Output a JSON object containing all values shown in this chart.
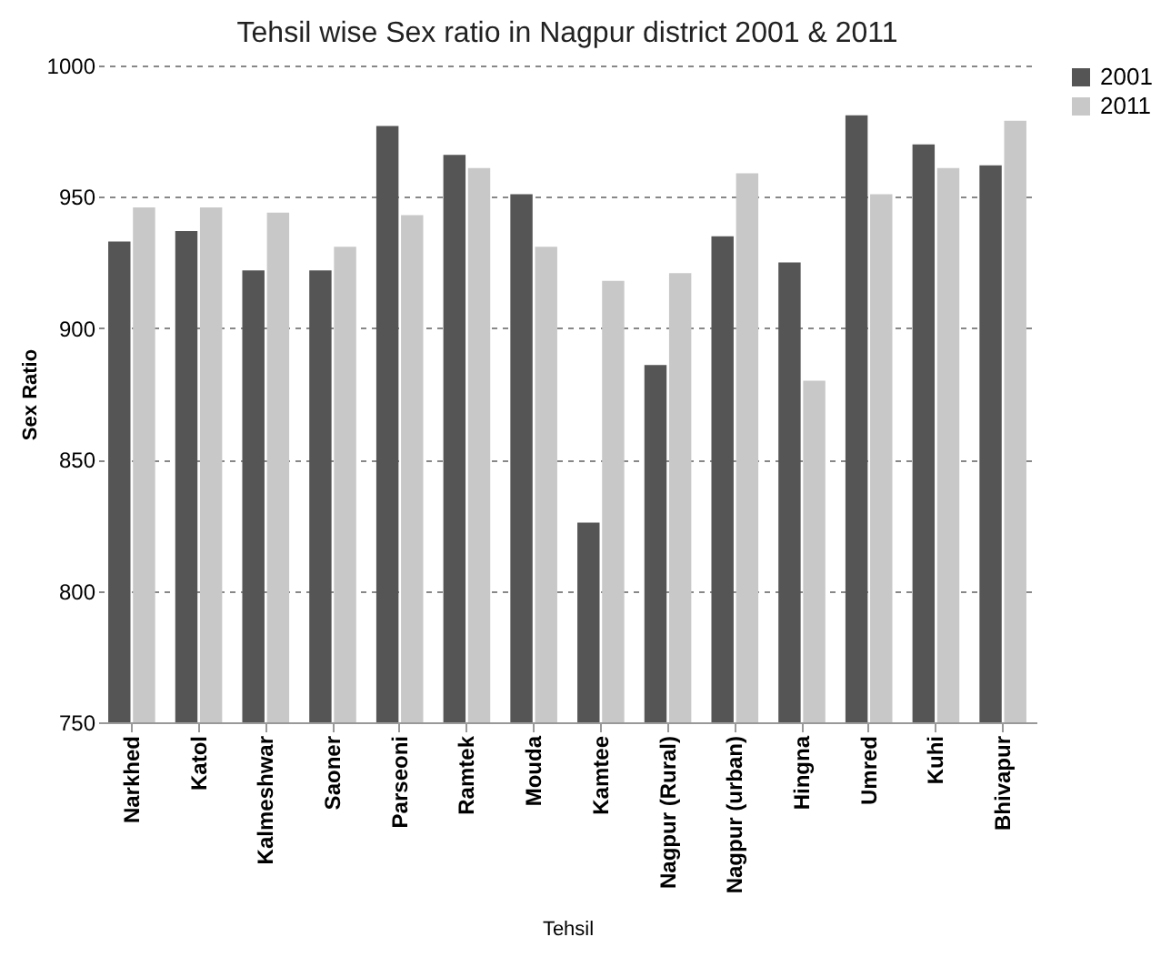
{
  "chart_data": {
    "type": "bar",
    "title": "Tehsil wise Sex ratio in Nagpur district 2001 & 2011",
    "xlabel": "Tehsil",
    "ylabel": "Sex Ratio",
    "categories": [
      "Narkhed",
      "Katol",
      "Kalmeshwar",
      "Saoner",
      "Parseoni",
      "Ramtek",
      "Mouda",
      "Kamtee",
      "Nagpur (Rural)",
      "Nagpur (urban)",
      "Hingna",
      "Umred",
      "Kuhi",
      "Bhivapur"
    ],
    "series": [
      {
        "name": "2001",
        "color": "#555555",
        "values": [
          933,
          937,
          922,
          922,
          977,
          966,
          951,
          826,
          886,
          935,
          925,
          981,
          970,
          962
        ]
      },
      {
        "name": "2011",
        "color": "#c8c8c8",
        "values": [
          946,
          946,
          944,
          931,
          943,
          961,
          931,
          918,
          921,
          959,
          880,
          951,
          961,
          979
        ]
      }
    ],
    "ylim": [
      750,
      1000
    ],
    "yticks": [
      750,
      800,
      850,
      900,
      950,
      1000
    ],
    "grid": "y",
    "legend": "right"
  }
}
